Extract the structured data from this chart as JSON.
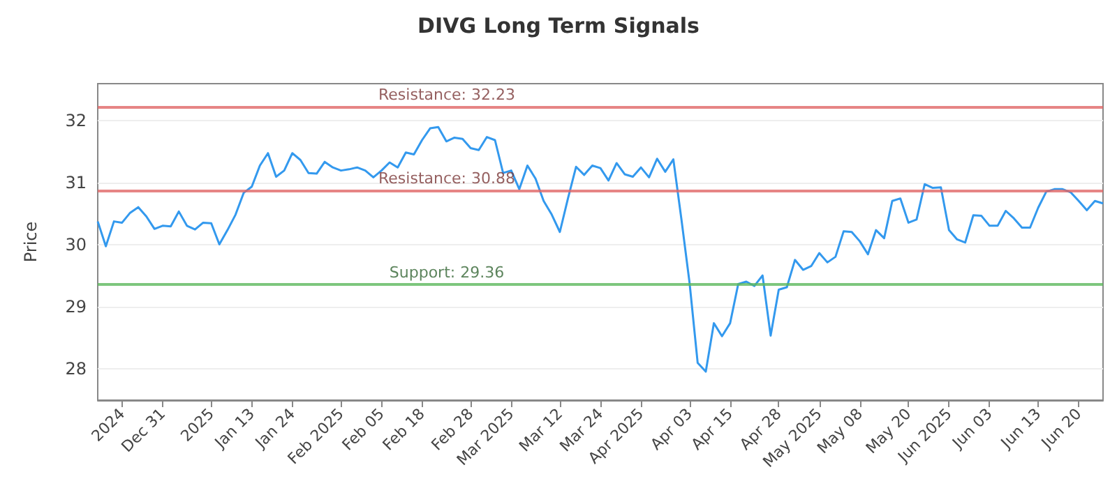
{
  "chart_data": {
    "type": "line",
    "title": "DIVG Long Term Signals",
    "ylabel": "Price",
    "categories": [
      null,
      null,
      null,
      "2024",
      null,
      null,
      null,
      null,
      "Dec 31",
      null,
      null,
      null,
      null,
      null,
      "2025",
      null,
      null,
      null,
      null,
      "Jan 13",
      null,
      null,
      null,
      null,
      "Jan 24",
      null,
      null,
      null,
      null,
      null,
      "Feb 2025",
      null,
      null,
      null,
      null,
      "Feb 05",
      null,
      null,
      null,
      null,
      "Feb 18",
      null,
      null,
      null,
      null,
      null,
      "Feb 28",
      null,
      null,
      null,
      null,
      "Mar 2025",
      null,
      null,
      null,
      null,
      null,
      "Mar 12",
      null,
      null,
      null,
      null,
      "Mar 24",
      null,
      null,
      null,
      null,
      "Apr 2025",
      null,
      null,
      null,
      null,
      null,
      "Apr 03",
      null,
      null,
      null,
      null,
      "Apr 15",
      null,
      null,
      null,
      null,
      null,
      "Apr 28",
      null,
      null,
      null,
      null,
      "May 2025",
      null,
      null,
      null,
      null,
      "May 08",
      null,
      null,
      null,
      null,
      null,
      "May 20",
      null,
      null,
      null,
      null,
      "Jun 2025",
      null,
      null,
      null,
      null,
      "Jun 03",
      null,
      null,
      null,
      null,
      null,
      "Jun 13",
      null,
      null,
      null,
      null,
      "Jun 20",
      null,
      null,
      null
    ],
    "series": [
      {
        "color": "#3399ee",
        "values": [
          30.38,
          29.98,
          30.38,
          30.36,
          30.52,
          30.61,
          30.46,
          30.26,
          30.31,
          30.3,
          30.54,
          30.31,
          30.25,
          30.36,
          30.35,
          30.01,
          30.24,
          30.49,
          30.84,
          30.94,
          31.28,
          31.48,
          31.1,
          31.2,
          31.48,
          31.37,
          31.16,
          31.15,
          31.34,
          31.25,
          31.2,
          31.22,
          31.25,
          31.2,
          31.09,
          31.2,
          31.33,
          31.25,
          31.49,
          31.46,
          31.69,
          31.88,
          31.9,
          31.67,
          31.73,
          31.71,
          31.56,
          31.53,
          31.74,
          31.69,
          31.16,
          31.2,
          30.9,
          31.28,
          31.07,
          30.71,
          30.49,
          30.21,
          30.75,
          31.26,
          31.13,
          31.28,
          31.24,
          31.04,
          31.32,
          31.14,
          31.1,
          31.25,
          31.09,
          31.39,
          31.18,
          31.38,
          30.41,
          29.39,
          28.1,
          27.96,
          28.74,
          28.53,
          28.74,
          29.37,
          29.41,
          29.34,
          29.51,
          28.54,
          29.28,
          29.32,
          29.76,
          29.6,
          29.66,
          29.87,
          29.72,
          29.81,
          30.22,
          30.21,
          30.06,
          29.85,
          30.24,
          30.11,
          30.71,
          30.75,
          30.36,
          30.41,
          30.98,
          30.92,
          30.93,
          30.24,
          30.09,
          30.04,
          30.48,
          30.47,
          30.31,
          30.31,
          30.55,
          30.43,
          30.28,
          30.28,
          30.6,
          30.86,
          30.9,
          30.9,
          30.85,
          30.71,
          30.56,
          30.71,
          30.67
        ]
      }
    ],
    "ylim": [
      27.5,
      32.6
    ],
    "yticks": [
      28,
      29,
      30,
      31,
      32
    ],
    "ref_lines": [
      {
        "axis": "y",
        "value": 32.23,
        "label": "Resistance: 32.23",
        "color": "#e06666"
      },
      {
        "axis": "y",
        "value": 30.88,
        "label": "Resistance: 30.88",
        "color": "#e06666"
      },
      {
        "axis": "y",
        "value": 29.36,
        "label": "Support: 29.36",
        "color": "#5cb85c"
      }
    ],
    "grid": "y",
    "marker": "none",
    "line_style": "solid"
  }
}
